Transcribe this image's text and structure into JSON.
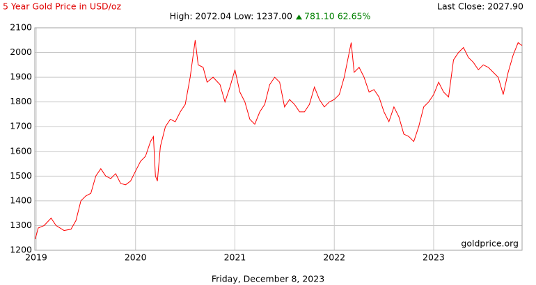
{
  "chart_data": {
    "type": "line",
    "title": "5 Year Gold Price in USD/oz",
    "last_close": "Last Close: 2027.90",
    "stats": "High: 2072.04 Low: 1237.00",
    "change": "781.10 62.65%",
    "source": "goldprice.org",
    "date": "Friday, December 8, 2023",
    "xlim": [
      2018.986,
      2023.89
    ],
    "xticks": [
      2019,
      2020,
      2021,
      2022,
      2023
    ],
    "ylim": [
      1200,
      2100
    ],
    "yticks": [
      1200,
      1300,
      1400,
      1500,
      1600,
      1700,
      1800,
      1900,
      2000,
      2100
    ],
    "grid": true,
    "series": [
      {
        "name": "Gold Price",
        "color": "#ff0000",
        "x": [
          2018.99,
          2019.02,
          2019.08,
          2019.15,
          2019.2,
          2019.28,
          2019.35,
          2019.4,
          2019.45,
          2019.5,
          2019.55,
          2019.6,
          2019.65,
          2019.7,
          2019.75,
          2019.8,
          2019.85,
          2019.9,
          2019.95,
          2020.0,
          2020.05,
          2020.1,
          2020.15,
          2020.18,
          2020.2,
          2020.22,
          2020.25,
          2020.3,
          2020.35,
          2020.4,
          2020.45,
          2020.5,
          2020.55,
          2020.6,
          2020.63,
          2020.68,
          2020.72,
          2020.78,
          2020.85,
          2020.9,
          2020.95,
          2021.0,
          2021.05,
          2021.1,
          2021.15,
          2021.2,
          2021.25,
          2021.3,
          2021.35,
          2021.4,
          2021.45,
          2021.5,
          2021.55,
          2021.6,
          2021.65,
          2021.7,
          2021.75,
          2021.8,
          2021.85,
          2021.9,
          2021.95,
          2022.0,
          2022.05,
          2022.1,
          2022.17,
          2022.2,
          2022.25,
          2022.3,
          2022.35,
          2022.4,
          2022.45,
          2022.5,
          2022.55,
          2022.6,
          2022.65,
          2022.7,
          2022.75,
          2022.8,
          2022.85,
          2022.9,
          2022.95,
          2023.0,
          2023.05,
          2023.1,
          2023.15,
          2023.2,
          2023.25,
          2023.3,
          2023.35,
          2023.4,
          2023.45,
          2023.5,
          2023.55,
          2023.6,
          2023.65,
          2023.7,
          2023.75,
          2023.8,
          2023.85,
          2023.89
        ],
        "values": [
          1245,
          1290,
          1300,
          1330,
          1300,
          1280,
          1285,
          1320,
          1400,
          1420,
          1430,
          1500,
          1530,
          1500,
          1490,
          1510,
          1470,
          1465,
          1480,
          1520,
          1560,
          1580,
          1640,
          1660,
          1500,
          1480,
          1620,
          1700,
          1730,
          1720,
          1760,
          1790,
          1900,
          2050,
          1950,
          1940,
          1880,
          1900,
          1870,
          1800,
          1860,
          1930,
          1840,
          1800,
          1730,
          1710,
          1760,
          1790,
          1870,
          1900,
          1880,
          1780,
          1810,
          1790,
          1760,
          1760,
          1790,
          1860,
          1810,
          1780,
          1800,
          1810,
          1830,
          1900,
          2040,
          1920,
          1940,
          1900,
          1840,
          1850,
          1820,
          1760,
          1720,
          1780,
          1740,
          1670,
          1660,
          1640,
          1700,
          1780,
          1800,
          1830,
          1880,
          1840,
          1820,
          1970,
          2000,
          2020,
          1980,
          1960,
          1930,
          1950,
          1940,
          1920,
          1900,
          1830,
          1920,
          1990,
          2040,
          2028
        ]
      }
    ]
  }
}
